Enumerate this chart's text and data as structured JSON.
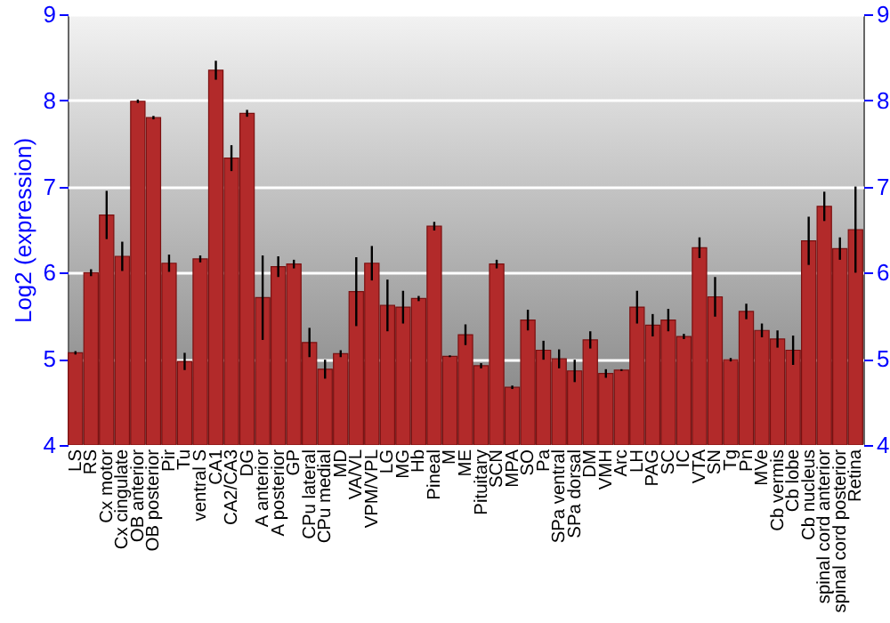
{
  "chart_data": {
    "type": "bar",
    "ylabel": "Log2 (expression)",
    "categories": [
      "LS",
      "RS",
      "Cx motor",
      "Cx cingulate",
      "OB anterior",
      "OB posterior",
      "Pir",
      "Tu",
      "ventral S",
      "CA1",
      "CA2/CA3",
      "DG",
      "A anterior",
      "A posterior",
      "GP",
      "CPu lateral",
      "CPu medial",
      "MD",
      "VA/VL",
      "VPM/VPL",
      "LG",
      "MG",
      "Hb",
      "Pineal",
      "M",
      "ME",
      "Pituitary",
      "SCN",
      "MPA",
      "SO",
      "Pa",
      "SPa ventral",
      "SPa dorsal",
      "DM",
      "VMH",
      "Arc",
      "LH",
      "PAG",
      "SC",
      "IC",
      "VTA",
      "SN",
      "Tg",
      "Pn",
      "MVe",
      "Cb vermis",
      "Cb lobe",
      "Cb nucleus",
      "spinal cord anterior",
      "spinal cord posterior",
      "Retina"
    ],
    "series": [
      {
        "color": "#b22a2a",
        "values": [
          5.07,
          6.0,
          6.67,
          6.19,
          7.99,
          7.8,
          6.11,
          4.97,
          6.16,
          8.35,
          7.33,
          7.85,
          5.71,
          6.07,
          6.1,
          5.19,
          4.88,
          5.06,
          5.78,
          6.11,
          5.62,
          5.6,
          5.7,
          6.54,
          5.03,
          5.28,
          4.92,
          6.1,
          4.67,
          5.45,
          5.1,
          5.0,
          4.86,
          5.22,
          4.83,
          4.87,
          5.6,
          5.39,
          5.45,
          5.26,
          6.29,
          5.72,
          4.99,
          5.55,
          5.33,
          5.23,
          5.1,
          6.37,
          6.77,
          6.28,
          6.5
        ],
        "errors": [
          0.02,
          0.04,
          0.28,
          0.17,
          0.02,
          0.02,
          0.1,
          0.1,
          0.04,
          0.11,
          0.15,
          0.04,
          0.49,
          0.12,
          0.05,
          0.17,
          0.11,
          0.04,
          0.4,
          0.2,
          0.3,
          0.19,
          0.03,
          0.05,
          0.01,
          0.12,
          0.03,
          0.05,
          0.02,
          0.12,
          0.11,
          0.11,
          0.13,
          0.1,
          0.05,
          0.01,
          0.19,
          0.13,
          0.13,
          0.03,
          0.12,
          0.23,
          0.02,
          0.09,
          0.08,
          0.1,
          0.17,
          0.28,
          0.17,
          0.13,
          0.5
        ]
      }
    ],
    "ylim": [
      4,
      9
    ],
    "yticks": [
      4,
      5,
      6,
      7,
      8,
      9
    ],
    "y2lim": [
      4,
      9
    ],
    "y2ticks": [
      4,
      5,
      6,
      7,
      8,
      9
    ],
    "grid": "y"
  }
}
